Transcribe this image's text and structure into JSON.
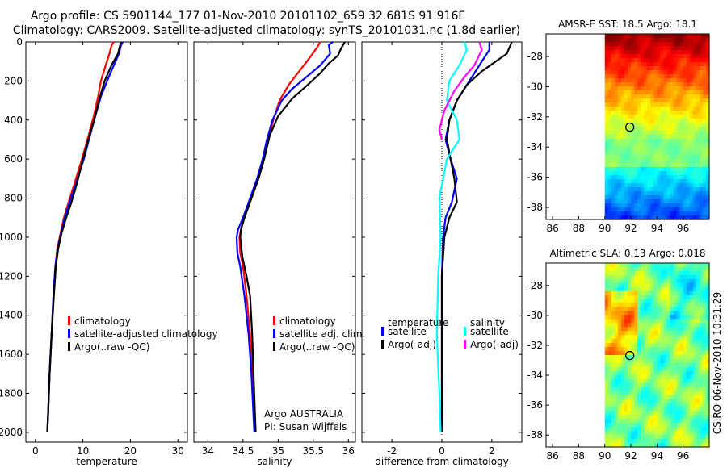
{
  "header": {
    "line1": "Argo profile: CS 5901144_177 01-Nov-2010 20101102_659 32.681S 91.916E",
    "line2": "Climatology: CARS2009. Satellite-adjusted climatology: synTS_20101031.nc (1.8d earlier)"
  },
  "footer": {
    "credit": "CSIRO 06-Nov-2010 10:31:29",
    "agency": "Argo AUSTRALIA",
    "pi": "PI: Susan Wijffels"
  },
  "colors": {
    "climatology": "#ff0000",
    "satellite": "#0000ff",
    "argo": "#000000",
    "sal_satellite": "#00ffff",
    "sal_argo": "#ff00ff"
  },
  "chart_data": [
    {
      "id": "temperature",
      "type": "line",
      "xlabel": "temperature",
      "ylabel": "",
      "xlim": [
        -2,
        32
      ],
      "ylim": [
        2050,
        0
      ],
      "xticks": [
        0,
        10,
        20,
        30
      ],
      "xtick_labels": [
        "0",
        "10",
        "20",
        "30"
      ],
      "yticks": [
        0,
        200,
        400,
        600,
        800,
        1000,
        1200,
        1400,
        1600,
        1800,
        2000
      ],
      "ytick_labels": [
        "0",
        "200",
        "400",
        "600",
        "800",
        "1000",
        "1200",
        "1400",
        "1600",
        "1800",
        "2000"
      ],
      "legend": [
        "climatology",
        "satellite-adjusted climatology",
        "Argo(..raw -QC)"
      ],
      "series": [
        {
          "name": "climatology",
          "color": "#ff0000",
          "points": [
            [
              16.5,
              0
            ],
            [
              16.0,
              20
            ],
            [
              15.6,
              60
            ],
            [
              14.8,
              120
            ],
            [
              13.8,
              200
            ],
            [
              13.2,
              280
            ],
            [
              12.3,
              380
            ],
            [
              11.2,
              480
            ],
            [
              9.8,
              600
            ],
            [
              8.3,
              720
            ],
            [
              7.0,
              820
            ],
            [
              6.0,
              900
            ],
            [
              5.3,
              980
            ],
            [
              4.6,
              1060
            ],
            [
              4.2,
              1150
            ],
            [
              3.8,
              1300
            ],
            [
              3.4,
              1500
            ],
            [
              3.0,
              1700
            ],
            [
              2.7,
              1900
            ],
            [
              2.5,
              2000
            ]
          ]
        },
        {
          "name": "satellite-adjusted climatology",
          "color": "#0000ff",
          "points": [
            [
              18.4,
              0
            ],
            [
              18.0,
              20
            ],
            [
              17.6,
              60
            ],
            [
              16.5,
              120
            ],
            [
              15.1,
              200
            ],
            [
              13.8,
              280
            ],
            [
              12.6,
              380
            ],
            [
              11.5,
              480
            ],
            [
              10.2,
              600
            ],
            [
              8.6,
              720
            ],
            [
              7.2,
              820
            ],
            [
              6.2,
              900
            ],
            [
              5.4,
              980
            ],
            [
              4.7,
              1060
            ],
            [
              4.2,
              1150
            ],
            [
              3.8,
              1300
            ],
            [
              3.4,
              1500
            ],
            [
              3.0,
              1700
            ],
            [
              2.7,
              1900
            ],
            [
              2.5,
              2000
            ]
          ]
        },
        {
          "name": "Argo(..raw -QC)",
          "color": "#000000",
          "points": [
            [
              18.0,
              0
            ],
            [
              17.8,
              20
            ],
            [
              17.4,
              60
            ],
            [
              16.0,
              120
            ],
            [
              14.6,
              200
            ],
            [
              13.6,
              280
            ],
            [
              12.6,
              380
            ],
            [
              11.4,
              480
            ],
            [
              10.0,
              600
            ],
            [
              8.8,
              720
            ],
            [
              7.6,
              820
            ],
            [
              6.5,
              900
            ],
            [
              5.5,
              980
            ],
            [
              4.8,
              1060
            ],
            [
              4.3,
              1150
            ],
            [
              3.9,
              1300
            ],
            [
              3.4,
              1500
            ],
            [
              3.0,
              1700
            ],
            [
              2.7,
              1900
            ],
            [
              2.5,
              2000
            ]
          ]
        }
      ]
    },
    {
      "id": "salinity",
      "type": "line",
      "xlabel": "salinity",
      "ylabel": "",
      "xlim": [
        33.8,
        36.1
      ],
      "ylim": [
        2050,
        0
      ],
      "xticks": [
        34,
        34.5,
        35,
        35.5,
        36
      ],
      "xtick_labels": [
        "34",
        "34.5",
        "35",
        "35.5",
        "36"
      ],
      "legend": [
        "climatology",
        "satellite adj. clim.",
        "Argo(..raw -QC)"
      ],
      "series": [
        {
          "name": "climatology",
          "color": "#ff0000",
          "points": [
            [
              35.6,
              0
            ],
            [
              35.55,
              30
            ],
            [
              35.45,
              80
            ],
            [
              35.3,
              150
            ],
            [
              35.15,
              220
            ],
            [
              35.02,
              300
            ],
            [
              34.93,
              400
            ],
            [
              34.86,
              500
            ],
            [
              34.8,
              600
            ],
            [
              34.72,
              700
            ],
            [
              34.62,
              800
            ],
            [
              34.52,
              900
            ],
            [
              34.47,
              960
            ],
            [
              34.45,
              1000
            ],
            [
              34.46,
              1080
            ],
            [
              34.5,
              1150
            ],
            [
              34.55,
              1300
            ],
            [
              34.6,
              1500
            ],
            [
              34.64,
              1700
            ],
            [
              34.68,
              2000
            ]
          ]
        },
        {
          "name": "satellite adj. clim.",
          "color": "#0000ff",
          "points": [
            [
              35.78,
              0
            ],
            [
              35.72,
              15
            ],
            [
              35.74,
              60
            ],
            [
              35.6,
              120
            ],
            [
              35.4,
              180
            ],
            [
              35.2,
              240
            ],
            [
              35.05,
              300
            ],
            [
              34.92,
              400
            ],
            [
              34.84,
              500
            ],
            [
              34.78,
              600
            ],
            [
              34.7,
              700
            ],
            [
              34.6,
              800
            ],
            [
              34.5,
              900
            ],
            [
              34.43,
              960
            ],
            [
              34.41,
              1000
            ],
            [
              34.42,
              1080
            ],
            [
              34.46,
              1150
            ],
            [
              34.52,
              1300
            ],
            [
              34.58,
              1500
            ],
            [
              34.62,
              1700
            ],
            [
              34.66,
              2000
            ]
          ]
        },
        {
          "name": "Argo(..raw -QC)",
          "color": "#000000",
          "points": [
            [
              35.95,
              0
            ],
            [
              35.9,
              30
            ],
            [
              35.85,
              70
            ],
            [
              35.72,
              110
            ],
            [
              35.6,
              160
            ],
            [
              35.42,
              220
            ],
            [
              35.2,
              290
            ],
            [
              35.0,
              380
            ],
            [
              34.88,
              480
            ],
            [
              34.8,
              600
            ],
            [
              34.72,
              700
            ],
            [
              34.62,
              800
            ],
            [
              34.52,
              900
            ],
            [
              34.47,
              960
            ],
            [
              34.46,
              1000
            ],
            [
              34.49,
              1100
            ],
            [
              34.55,
              1200
            ],
            [
              34.6,
              1300
            ],
            [
              34.63,
              1500
            ],
            [
              34.65,
              1700
            ],
            [
              34.68,
              2000
            ]
          ]
        }
      ]
    },
    {
      "id": "difference",
      "type": "line",
      "xlabel": "difference from climatology",
      "ylabel": "",
      "xlim": [
        -3.2,
        3.2
      ],
      "ylim": [
        2050,
        0
      ],
      "xticks": [
        -2,
        0,
        2
      ],
      "xtick_labels": [
        "-2",
        "0",
        "2"
      ],
      "legend_titles": [
        "temperature",
        "salinity"
      ],
      "legend": [
        "satellite",
        "Argo(-adj)",
        "satellite",
        "Argo(-adj)"
      ],
      "series": [
        {
          "name": "temperature satellite",
          "color": "#0000ff",
          "points": [
            [
              1.9,
              0
            ],
            [
              1.9,
              40
            ],
            [
              1.5,
              120
            ],
            [
              1.1,
              200
            ],
            [
              0.6,
              300
            ],
            [
              0.3,
              400
            ],
            [
              0.15,
              500
            ],
            [
              0.35,
              600
            ],
            [
              0.6,
              700
            ],
            [
              0.4,
              820
            ],
            [
              0.15,
              900
            ],
            [
              0.05,
              1000
            ],
            [
              0.0,
              1200
            ],
            [
              0.0,
              1600
            ],
            [
              0.0,
              2000
            ]
          ]
        },
        {
          "name": "temperature Argo(-adj)",
          "color": "#000000",
          "points": [
            [
              2.8,
              0
            ],
            [
              2.6,
              60
            ],
            [
              1.6,
              150
            ],
            [
              1.0,
              220
            ],
            [
              0.6,
              300
            ],
            [
              0.3,
              400
            ],
            [
              0.2,
              500
            ],
            [
              0.35,
              600
            ],
            [
              0.5,
              700
            ],
            [
              0.6,
              820
            ],
            [
              0.3,
              900
            ],
            [
              0.1,
              1000
            ],
            [
              0.0,
              1200
            ],
            [
              0.0,
              1600
            ],
            [
              0.0,
              2000
            ]
          ]
        },
        {
          "name": "salinity satellite",
          "color": "#00ffff",
          "points": [
            [
              0.9,
              0
            ],
            [
              1.0,
              40
            ],
            [
              0.7,
              120
            ],
            [
              0.3,
              200
            ],
            [
              0.2,
              300
            ],
            [
              0.6,
              400
            ],
            [
              0.7,
              500
            ],
            [
              0.2,
              600
            ],
            [
              -0.1,
              800
            ],
            [
              -0.05,
              1000
            ],
            [
              -0.15,
              1200
            ],
            [
              -0.2,
              1500
            ],
            [
              -0.1,
              1800
            ],
            [
              -0.05,
              2000
            ]
          ]
        },
        {
          "name": "salinity Argo(-adj)",
          "color": "#ff00ff",
          "points": [
            [
              1.5,
              0
            ],
            [
              1.6,
              40
            ],
            [
              1.3,
              120
            ],
            [
              0.9,
              180
            ],
            [
              0.5,
              250
            ],
            [
              0.1,
              350
            ],
            [
              -0.1,
              450
            ],
            [
              0.0,
              500
            ]
          ]
        }
      ]
    },
    {
      "id": "sst_map",
      "type": "heatmap",
      "title": "AMSR-E SST: 18.5 Argo: 18.1",
      "xlim": [
        85.5,
        98
      ],
      "ylim": [
        -38.8,
        -26.5
      ],
      "xticks": [
        86,
        88,
        90,
        92,
        94,
        96
      ],
      "xtick_labels": [
        "86",
        "88",
        "90",
        "92",
        "94",
        "96"
      ],
      "yticks": [
        -28,
        -30,
        -32,
        -34,
        -36,
        -38
      ],
      "ytick_labels": [
        "-28",
        "-30",
        "-32",
        "-34",
        "-36",
        "-38"
      ],
      "data_xrange": [
        90,
        98
      ],
      "marker": [
        91.916,
        -32.681
      ]
    },
    {
      "id": "sla_map",
      "type": "heatmap",
      "title": "Altimetric SLA: 0.13 Argo: 0.018",
      "xlim": [
        85.5,
        98
      ],
      "ylim": [
        -38.8,
        -26.5
      ],
      "xticks": [
        86,
        88,
        90,
        92,
        94,
        96
      ],
      "xtick_labels": [
        "86",
        "88",
        "90",
        "92",
        "94",
        "96"
      ],
      "yticks": [
        -28,
        -30,
        -32,
        -34,
        -36,
        -38
      ],
      "ytick_labels": [
        "-28",
        "-30",
        "-32",
        "-34",
        "-36",
        "-38"
      ],
      "data_xrange": [
        90,
        98
      ],
      "marker": [
        91.916,
        -32.681
      ]
    }
  ]
}
